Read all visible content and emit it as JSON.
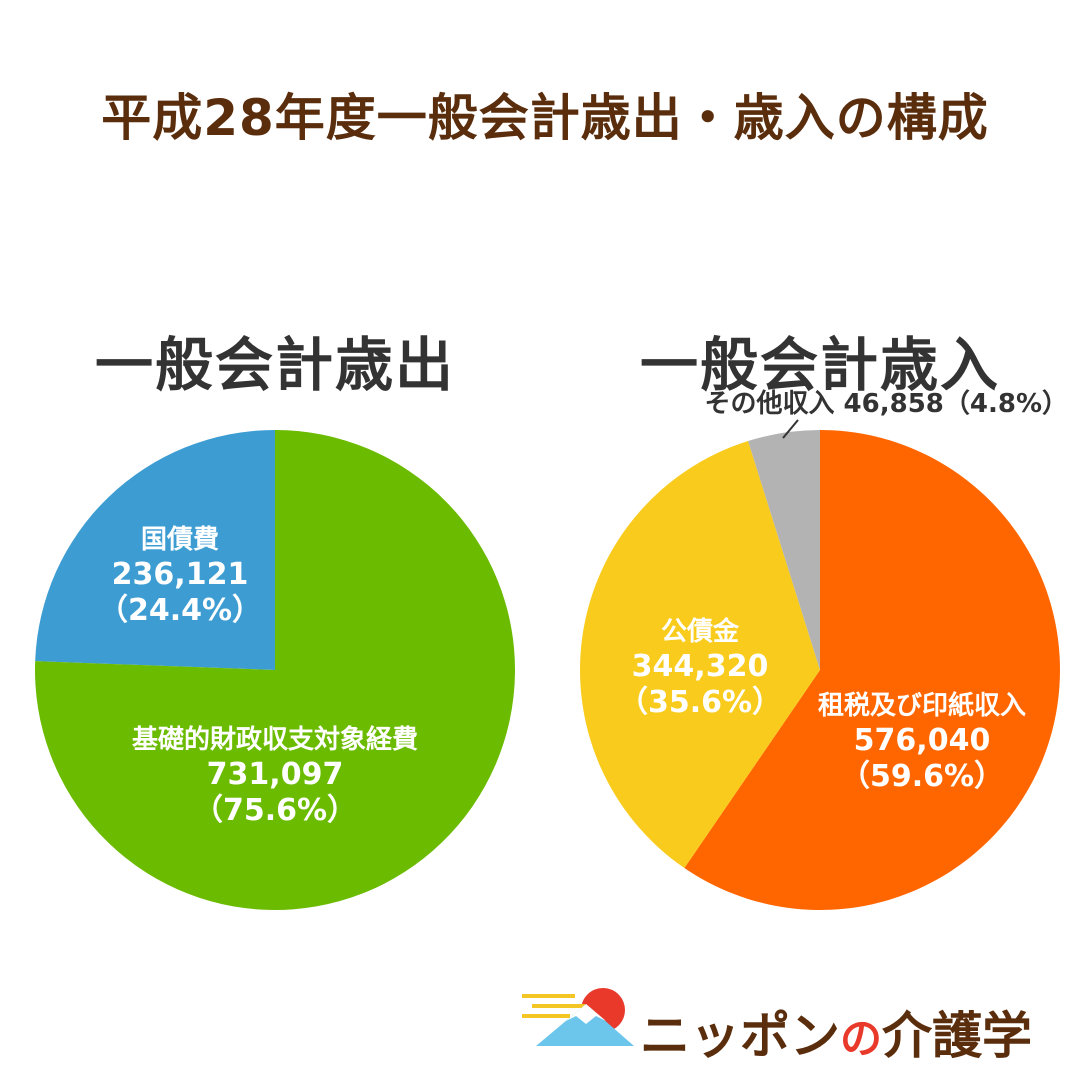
{
  "title": "平成28年度一般会計歳出・歳入の構成",
  "colors": {
    "title": "#5a2d0c",
    "heading": "#333333",
    "slice_label": "#ffffff",
    "callout_label": "#333333"
  },
  "chart_data": [
    {
      "type": "pie",
      "title": "一般会計歳出",
      "slices": [
        {
          "name": "国債費",
          "value": 236121,
          "value_label": "236,121",
          "pct_label": "（24.4%）",
          "color": "#3d9dd3"
        },
        {
          "name": "基礎的財政収支対象経費",
          "value": 731097,
          "value_label": "731,097",
          "pct_label": "（75.6%）",
          "color": "#6bbb00"
        }
      ]
    },
    {
      "type": "pie",
      "title": "一般会計歳入",
      "slices": [
        {
          "name": "租税及び印紙収入",
          "value": 576040,
          "value_label": "576,040",
          "pct_label": "（59.6%）",
          "color": "#ff6600"
        },
        {
          "name": "公債金",
          "value": 344320,
          "value_label": "344,320",
          "pct_label": "（35.6%）",
          "color": "#f8cb1c"
        },
        {
          "name": "その他収入",
          "value": 46858,
          "value_label": "46,858",
          "pct_label": "（4.8%）",
          "color": "#b3b3b3"
        }
      ]
    }
  ],
  "logo": {
    "text": "ニッポン",
    "particle": "の",
    "suffix": "介護学"
  }
}
